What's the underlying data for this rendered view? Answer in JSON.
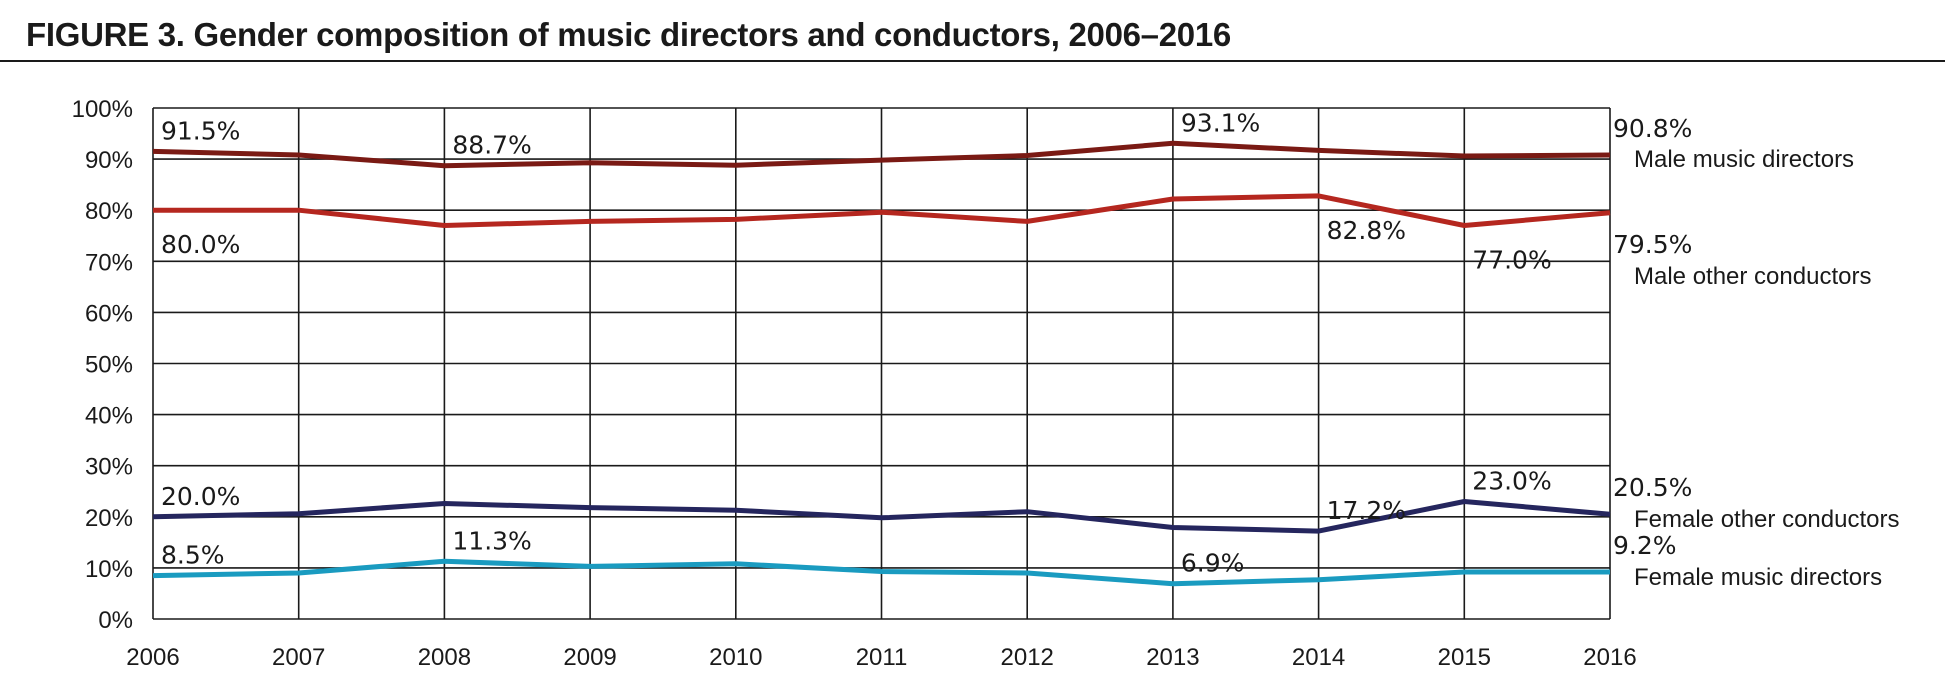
{
  "title": "FIGURE 3. Gender composition of music directors and conductors, 2006–2016",
  "chart_data": {
    "type": "line",
    "title": "FIGURE 3. Gender composition of music directors and conductors, 2006–2016",
    "x": [
      "2006",
      "2007",
      "2008",
      "2009",
      "2010",
      "2011",
      "2012",
      "2013",
      "2014",
      "2015",
      "2016"
    ],
    "ylim": [
      0,
      100
    ],
    "y_ticks": [
      "0%",
      "10%",
      "20%",
      "30%",
      "40%",
      "50%",
      "60%",
      "70%",
      "80%",
      "90%",
      "100%"
    ],
    "grid": true,
    "series": [
      {
        "name": "Male music directors",
        "color": "#7a1a14",
        "values": [
          91.5,
          90.8,
          88.7,
          89.3,
          88.8,
          89.8,
          90.7,
          93.1,
          91.7,
          90.6,
          90.8
        ],
        "labels": [
          {
            "i": 0,
            "text": "91.5%",
            "pos": "above"
          },
          {
            "i": 2,
            "text": "88.7%",
            "pos": "above"
          },
          {
            "i": 7,
            "text": "93.1%",
            "pos": "above"
          },
          {
            "i": 10,
            "text": "90.8%",
            "pos": "end-above"
          }
        ]
      },
      {
        "name": "Male other conductors",
        "color": "#b5271f",
        "values": [
          80.0,
          80.0,
          77.0,
          77.8,
          78.2,
          79.6,
          77.8,
          82.2,
          82.8,
          77.0,
          79.5
        ],
        "labels": [
          {
            "i": 0,
            "text": "80.0%",
            "pos": "below"
          },
          {
            "i": 8,
            "text": "82.8%",
            "pos": "below"
          },
          {
            "i": 9,
            "text": "77.0%",
            "pos": "below"
          },
          {
            "i": 10,
            "text": "79.5%",
            "pos": "end-below"
          }
        ]
      },
      {
        "name": "Female other conductors",
        "color": "#25265e",
        "values": [
          20.0,
          20.6,
          22.6,
          21.8,
          21.3,
          19.8,
          21.0,
          17.9,
          17.2,
          23.0,
          20.5
        ],
        "labels": [
          {
            "i": 0,
            "text": "20.0%",
            "pos": "above"
          },
          {
            "i": 8,
            "text": "17.2%",
            "pos": "above"
          },
          {
            "i": 9,
            "text": "23.0%",
            "pos": "above"
          },
          {
            "i": 10,
            "text": "20.5%",
            "pos": "end-above"
          }
        ]
      },
      {
        "name": "Female music directors",
        "color": "#1a9bc0",
        "values": [
          8.5,
          9.0,
          11.3,
          10.3,
          10.8,
          9.3,
          9.0,
          6.9,
          7.7,
          9.2,
          9.2
        ],
        "labels": [
          {
            "i": 0,
            "text": "8.5%",
            "pos": "above"
          },
          {
            "i": 2,
            "text": "11.3%",
            "pos": "above"
          },
          {
            "i": 7,
            "text": "6.9%",
            "pos": "above"
          },
          {
            "i": 10,
            "text": "9.2%",
            "pos": "end-above"
          }
        ]
      }
    ]
  }
}
